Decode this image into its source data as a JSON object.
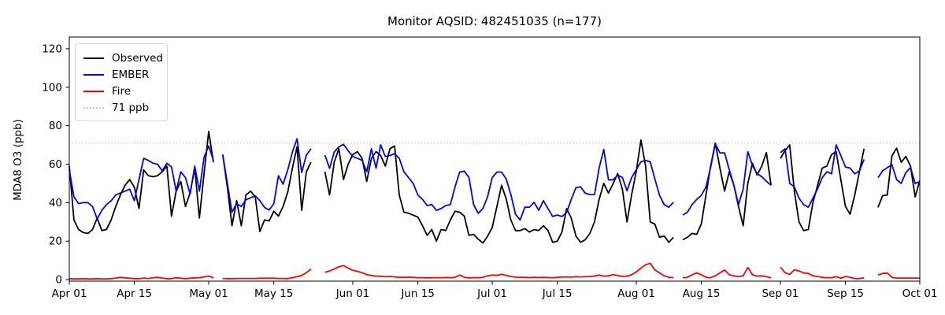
{
  "chart_data": {
    "type": "line",
    "title": "Monitor AQSID: 482451035 (n=177)",
    "ylabel": "MDA8 O3 (ppb)",
    "xlabel": "",
    "n_obs": 177,
    "grid": false,
    "legend_position": "upper left",
    "ylim": [
      -0.8,
      126.1
    ],
    "yticks": [
      0,
      20,
      40,
      60,
      80,
      100,
      120
    ],
    "xlim_days": [
      0,
      183
    ],
    "xticks": [
      {
        "label": "Apr 01",
        "day": 0
      },
      {
        "label": "Apr 15",
        "day": 14
      },
      {
        "label": "May 01",
        "day": 30
      },
      {
        "label": "May 15",
        "day": 44
      },
      {
        "label": "Jun 01",
        "day": 61
      },
      {
        "label": "Jun 15",
        "day": 75
      },
      {
        "label": "Jul 01",
        "day": 91
      },
      {
        "label": "Jul 15",
        "day": 105
      },
      {
        "label": "Aug 01",
        "day": 122
      },
      {
        "label": "Aug 15",
        "day": 136
      },
      {
        "label": "Sep 01",
        "day": 153
      },
      {
        "label": "Sep 15",
        "day": 167
      },
      {
        "label": "Oct 01",
        "day": 183
      }
    ],
    "threshold": {
      "value": 71,
      "label": "71 ppb",
      "color": "#c8c8c8",
      "style": "dotted"
    },
    "x_dates": [
      "Apr 01",
      "Apr 02",
      "Apr 03",
      "Apr 04",
      "Apr 05",
      "Apr 06",
      "Apr 07",
      "Apr 08",
      "Apr 09",
      "Apr 10",
      "Apr 11",
      "Apr 12",
      "Apr 13",
      "Apr 14",
      "Apr 15",
      "Apr 16",
      "Apr 17",
      "Apr 18",
      "Apr 19",
      "Apr 20",
      "Apr 21",
      "Apr 22",
      "Apr 23",
      "Apr 24",
      "Apr 25",
      "Apr 26",
      "Apr 27",
      "Apr 28",
      "Apr 29",
      "Apr 30",
      "May 01",
      "May 02",
      "May 03",
      "May 04",
      "May 05",
      "May 06",
      "May 07",
      "May 08",
      "May 09",
      "May 10",
      "May 11",
      "May 12",
      "May 13",
      "May 14",
      "May 15",
      "May 16",
      "May 17",
      "May 18",
      "May 19",
      "May 20",
      "May 21",
      "May 22",
      "May 23",
      "May 24",
      "May 25",
      "May 26",
      "May 27",
      "May 28",
      "May 29",
      "May 30",
      "May 31",
      "Jun 01",
      "Jun 02",
      "Jun 03",
      "Jun 04",
      "Jun 05",
      "Jun 06",
      "Jun 07",
      "Jun 08",
      "Jun 09",
      "Jun 10",
      "Jun 11",
      "Jun 12",
      "Jun 13",
      "Jun 14",
      "Jun 15",
      "Jun 16",
      "Jun 17",
      "Jun 18",
      "Jun 19",
      "Jun 20",
      "Jun 21",
      "Jun 22",
      "Jun 23",
      "Jun 24",
      "Jun 25",
      "Jun 26",
      "Jun 27",
      "Jun 28",
      "Jun 29",
      "Jun 30",
      "Jul 01",
      "Jul 02",
      "Jul 03",
      "Jul 04",
      "Jul 05",
      "Jul 06",
      "Jul 07",
      "Jul 08",
      "Jul 09",
      "Jul 10",
      "Jul 11",
      "Jul 12",
      "Jul 13",
      "Jul 14",
      "Jul 15",
      "Jul 16",
      "Jul 17",
      "Jul 18",
      "Jul 19",
      "Jul 20",
      "Jul 21",
      "Jul 22",
      "Jul 23",
      "Jul 24",
      "Jul 25",
      "Jul 26",
      "Jul 27",
      "Jul 28",
      "Jul 29",
      "Jul 30",
      "Jul 31",
      "Aug 01",
      "Aug 02",
      "Aug 03",
      "Aug 04",
      "Aug 05",
      "Aug 06",
      "Aug 07",
      "Aug 08",
      "Aug 09",
      "Aug 10",
      "Aug 11",
      "Aug 12",
      "Aug 13",
      "Aug 14",
      "Aug 15",
      "Aug 16",
      "Aug 17",
      "Aug 18",
      "Aug 19",
      "Aug 20",
      "Aug 21",
      "Aug 22",
      "Aug 23",
      "Aug 24",
      "Aug 25",
      "Aug 26",
      "Aug 27",
      "Aug 28",
      "Aug 29",
      "Aug 30",
      "Aug 31",
      "Sep 01",
      "Sep 02",
      "Sep 03",
      "Sep 04",
      "Sep 05",
      "Sep 06",
      "Sep 07",
      "Sep 08",
      "Sep 09",
      "Sep 10",
      "Sep 11",
      "Sep 12",
      "Sep 13",
      "Sep 14",
      "Sep 15",
      "Sep 16",
      "Sep 17",
      "Sep 18",
      "Sep 19",
      "Sep 20",
      "Sep 21",
      "Sep 22",
      "Sep 23",
      "Sep 24",
      "Sep 25",
      "Sep 26",
      "Sep 27",
      "Sep 28",
      "Sep 29",
      "Sep 30",
      "Oct 01"
    ],
    "series": [
      {
        "name": "Observed",
        "color": "#000000",
        "values": [
          59,
          31,
          26,
          24.5,
          24,
          26,
          32,
          25.5,
          26,
          31,
          38,
          44,
          49,
          52,
          48,
          37,
          57,
          54,
          53.5,
          54,
          56,
          59,
          33,
          46,
          51,
          38,
          45,
          58,
          32,
          55,
          77,
          61,
          null,
          65,
          48,
          28,
          41,
          28,
          44,
          46,
          43,
          25,
          31,
          30.5,
          35.5,
          33,
          38,
          45.5,
          58,
          69,
          36,
          56,
          61,
          null,
          null,
          56,
          44,
          61,
          68,
          52,
          60,
          65,
          66.5,
          63,
          51,
          63,
          66.5,
          64.5,
          59,
          68,
          69.5,
          44,
          35,
          34.5,
          33.5,
          32.5,
          28,
          23,
          26,
          20,
          26,
          25.5,
          31,
          35.5,
          35,
          33,
          23,
          23.5,
          21,
          19,
          22.5,
          27,
          38,
          49,
          42,
          31,
          25.5,
          25.5,
          26.5,
          24.7,
          26,
          25.5,
          28,
          25.5,
          19.4,
          20,
          24.7,
          36.9,
          32,
          22.7,
          19.4,
          20.7,
          24,
          30,
          41.7,
          50,
          45,
          49.8,
          55.1,
          47,
          30,
          44.2,
          56.4,
          72.5,
          59,
          30,
          28.8,
          22,
          22.7,
          19.4,
          22,
          null,
          20.7,
          22,
          24,
          23.5,
          29,
          44,
          59,
          71,
          58,
          46,
          56,
          49,
          38,
          28,
          50,
          60.5,
          54.4,
          59,
          66,
          49,
          null,
          63,
          67,
          70,
          46,
          30,
          25.5,
          26,
          40,
          49,
          58,
          59,
          65,
          66.5,
          52,
          38,
          34,
          44,
          56,
          68,
          null,
          null,
          37.5,
          43.6,
          44,
          64.3,
          68.3,
          61,
          64,
          59,
          43,
          51.5
        ]
      },
      {
        "name": "EMBER",
        "color": "#0000ff",
        "values": [
          57,
          43,
          39.5,
          40,
          40,
          38,
          31.5,
          36,
          39,
          41,
          44,
          45,
          46,
          47,
          41,
          52,
          63,
          62,
          60.5,
          60,
          56.5,
          60.5,
          58.5,
          46,
          56,
          53,
          44.5,
          59,
          46,
          63.5,
          69.5,
          62,
          null,
          65,
          50,
          35,
          39.5,
          38,
          41.5,
          42.5,
          43.5,
          41,
          37.5,
          36.2,
          39.5,
          54,
          49.6,
          57,
          66.3,
          73.2,
          55.7,
          64.7,
          68,
          null,
          null,
          64.7,
          57.8,
          66.3,
          69,
          70.3,
          67,
          64,
          63,
          62,
          56,
          68,
          58,
          70,
          64,
          64.5,
          65.5,
          63,
          56,
          53,
          50,
          44,
          41.7,
          38.5,
          39,
          36,
          36.9,
          38.5,
          39,
          48.2,
          55.9,
          56.4,
          53.1,
          39,
          34.5,
          36.9,
          43,
          53,
          55.9,
          55.9,
          52.3,
          44.2,
          34,
          31,
          37.6,
          37.6,
          40.2,
          36,
          41,
          36.9,
          32.8,
          33.6,
          32.8,
          34.9,
          41.7,
          47.8,
          48.2,
          45,
          44.2,
          44.2,
          58,
          67.7,
          51.9,
          51.9,
          54.3,
          53.1,
          46.2,
          53.1,
          57.2,
          61.2,
          62,
          61.2,
          52.3,
          43.8,
          39,
          37.6,
          40.2,
          null,
          33.6,
          35,
          39,
          41.7,
          43.8,
          48.2,
          58.4,
          70.6,
          65.9,
          65.9,
          57.2,
          49,
          39,
          47,
          66.5,
          59.2,
          55.1,
          53.5,
          51.1,
          49,
          null,
          66,
          68,
          50,
          48.2,
          42.3,
          39,
          37.6,
          42.3,
          47.2,
          53,
          56,
          55,
          70,
          64.5,
          58.5,
          58,
          55,
          56.5,
          62.5,
          null,
          null,
          53,
          56.5,
          58.2,
          59.8,
          52,
          50,
          55.7,
          58.2,
          50,
          50.9
        ]
      },
      {
        "name": "Fire",
        "color": "#ff0000",
        "values": [
          0.5,
          0.4,
          0.4,
          0.5,
          0.4,
          0.4,
          0.5,
          0.4,
          0.4,
          0.5,
          0.8,
          1.2,
          0.9,
          0.7,
          0.5,
          0.5,
          0.8,
          0.6,
          1,
          1.2,
          0.8,
          0.5,
          0.5,
          0.9,
          0.7,
          0.5,
          0.7,
          0.9,
          1,
          1.4,
          1.8,
          1,
          null,
          0.6,
          0.5,
          0.5,
          0.6,
          0.6,
          0.6,
          0.6,
          0.6,
          0.7,
          0.7,
          0.7,
          0.7,
          0.6,
          0.6,
          0.5,
          1,
          1.5,
          2.2,
          3.6,
          5.5,
          null,
          null,
          3.8,
          4.5,
          5.5,
          6.7,
          7.3,
          6,
          4.8,
          4.3,
          3.6,
          2.6,
          2.2,
          1.8,
          1.7,
          1.5,
          1.6,
          1.4,
          1.2,
          1.2,
          1.3,
          1.2,
          1,
          1,
          0.9,
          1,
          1,
          1,
          1.1,
          1,
          1.2,
          2.4,
          1.2,
          0.9,
          1,
          1,
          1.2,
          2,
          2.4,
          2.2,
          2.8,
          2.2,
          1.6,
          1.3,
          1.2,
          1.2,
          1.1,
          1.2,
          1.1,
          1.2,
          1.1,
          1,
          1.2,
          1.3,
          1.4,
          1.3,
          1.5,
          1.4,
          1.5,
          1.6,
          1.8,
          2.4,
          1.8,
          2,
          2.6,
          2.2,
          1.6,
          1.8,
          2.5,
          4,
          6,
          7.7,
          8.5,
          5,
          3.5,
          2,
          1.2,
          1.1,
          null,
          1,
          1.2,
          2.5,
          3.5,
          2.5,
          1.2,
          1,
          2,
          3.5,
          5,
          2.5,
          2,
          1.5,
          2,
          6.3,
          2.5,
          1.8,
          2,
          1.5,
          1,
          null,
          6.5,
          3.6,
          2.7,
          5.1,
          4.5,
          3.5,
          3.2,
          2,
          1.6,
          1.2,
          1,
          1,
          1.5,
          0.8,
          1.6,
          1.2,
          0.6,
          0.5,
          0.9,
          null,
          null,
          2.4,
          3.2,
          3.4,
          1.2,
          0.8,
          0.8,
          0.8,
          0.8,
          0.8,
          0.8
        ]
      }
    ]
  }
}
